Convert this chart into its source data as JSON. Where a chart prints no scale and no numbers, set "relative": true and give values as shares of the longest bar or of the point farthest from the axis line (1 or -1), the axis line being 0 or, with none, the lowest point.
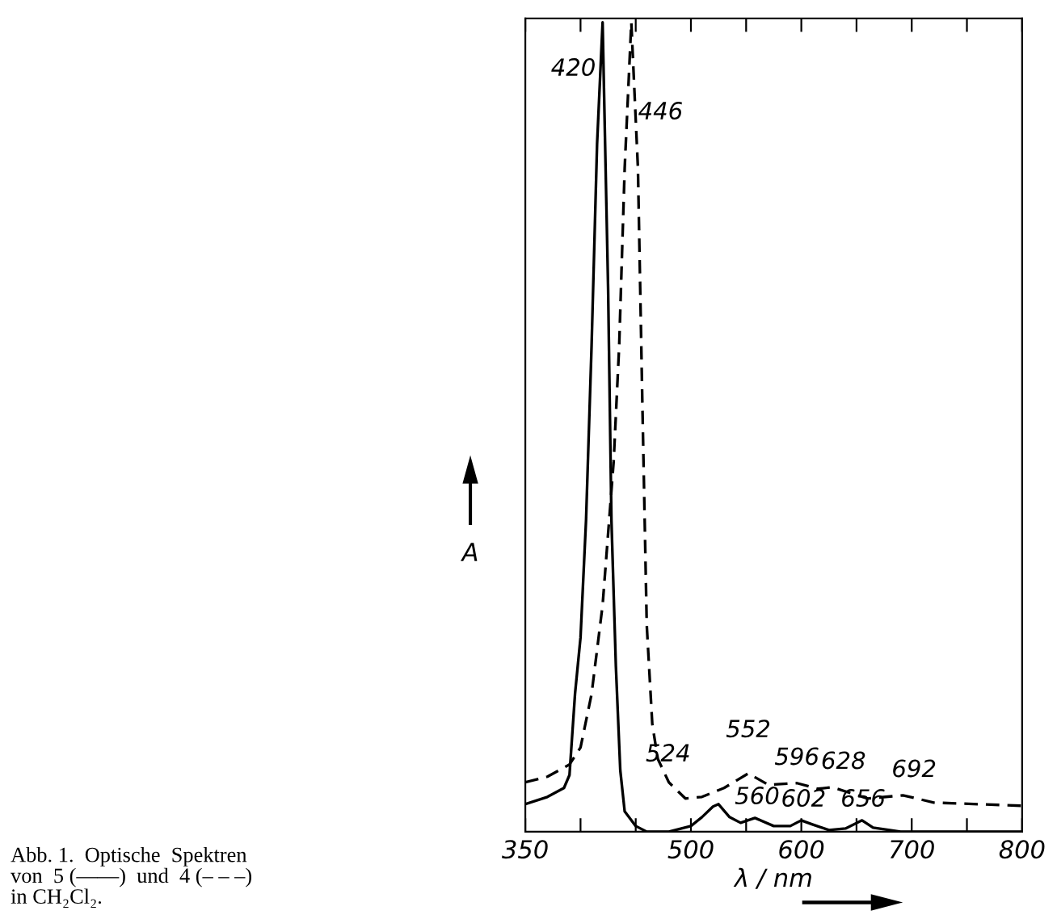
{
  "chart_data": {
    "type": "line",
    "relative": true,
    "xlabel": "λ / nm",
    "ylabel": "A",
    "xlim": [
      350,
      800
    ],
    "xticks": [
      350,
      {
        "value": 400,
        "label": null
      },
      {
        "value": 450,
        "label": null
      },
      500,
      {
        "value": 550,
        "label": null
      },
      600,
      {
        "value": 650,
        "label": null
      },
      700,
      {
        "value": 750,
        "label": null
      },
      800
    ],
    "grid": false,
    "legend": false,
    "series": [
      {
        "color": "#000000",
        "line_style": "solid",
        "x": [
          350,
          370,
          385,
          390,
          395,
          400,
          405,
          410,
          415,
          420,
          425,
          428,
          432,
          436,
          440,
          450,
          460,
          480,
          500,
          510,
          520,
          525,
          535,
          545,
          558,
          575,
          590,
          600,
          610,
          625,
          640,
          655,
          665,
          690,
          750,
          800
        ],
        "values": [
          0.034,
          0.043,
          0.054,
          0.07,
          0.17,
          0.24,
          0.385,
          0.6,
          0.85,
          1.0,
          0.67,
          0.385,
          0.205,
          0.076,
          0.025,
          0.007,
          0.0,
          0.0,
          0.007,
          0.018,
          0.031,
          0.034,
          0.018,
          0.011,
          0.017,
          0.007,
          0.007,
          0.014,
          0.009,
          0.002,
          0.004,
          0.014,
          0.005,
          0.0,
          0.0,
          0.0
        ]
      },
      {
        "color": "#000000",
        "line_style": "dashed",
        "x": [
          350,
          370,
          390,
          400,
          410,
          420,
          430,
          435,
          440,
          446,
          452,
          456,
          460,
          465,
          470,
          480,
          495,
          510,
          530,
          552,
          570,
          596,
          615,
          628,
          660,
          692,
          720,
          800
        ],
        "values": [
          0.061,
          0.068,
          0.083,
          0.104,
          0.17,
          0.28,
          0.457,
          0.6,
          0.82,
          1.0,
          0.82,
          0.53,
          0.255,
          0.133,
          0.09,
          0.061,
          0.041,
          0.043,
          0.054,
          0.072,
          0.058,
          0.06,
          0.053,
          0.055,
          0.041,
          0.045,
          0.036,
          0.032
        ]
      }
    ],
    "annotations": [
      {
        "text": "420",
        "x": 420,
        "y": 0.97
      },
      {
        "text": "446",
        "x": 446,
        "y": 0.93
      },
      {
        "text": "524",
        "x": 520,
        "y": 0.031
      },
      {
        "text": "552",
        "x": 552,
        "y": 0.072
      },
      {
        "text": "596",
        "x": 596,
        "y": 0.06
      },
      {
        "text": "628",
        "x": 628,
        "y": 0.055
      },
      {
        "text": "692",
        "x": 692,
        "y": 0.045
      },
      {
        "text": "560",
        "x": 560,
        "y": 0.017
      },
      {
        "text": "602",
        "x": 602,
        "y": 0.014
      },
      {
        "text": "656",
        "x": 656,
        "y": 0.014
      },
      "Abb. 1.  Optische  Spektren\nvon  5 (——)  und  4 (– – –)\nin CH₂Cl₂."
    ]
  }
}
